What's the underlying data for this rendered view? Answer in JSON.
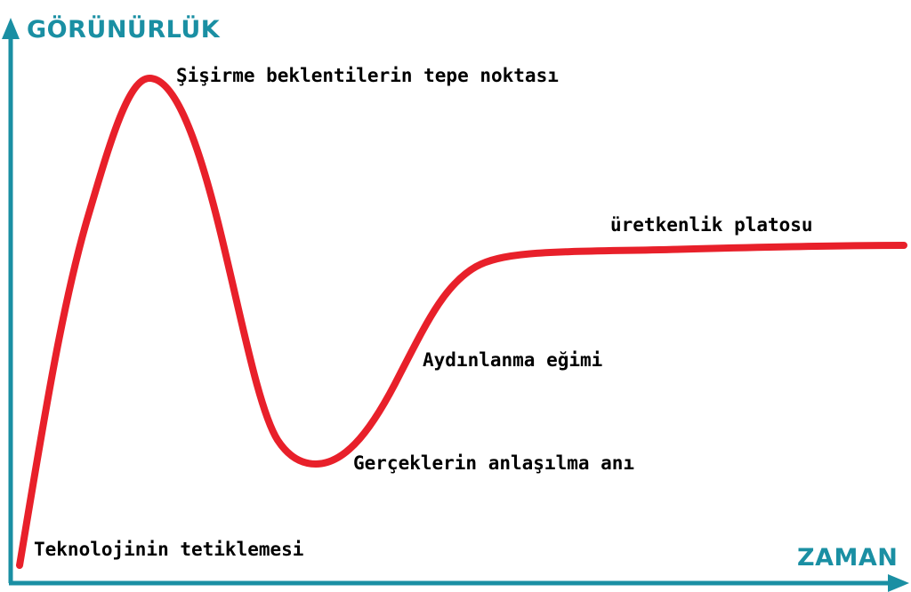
{
  "colors": {
    "axis": "#1a8fa3",
    "curve": "#e8202a",
    "text": "#000000",
    "background": "#ffffff"
  },
  "axes": {
    "y_label": "GÖRÜNÜRLÜK",
    "x_label": "ZAMAN"
  },
  "phases": [
    {
      "id": "trigger",
      "label": "Teknolojinin tetiklemesi"
    },
    {
      "id": "peak",
      "label": "Şişirme beklentilerin tepe noktası"
    },
    {
      "id": "trough",
      "label": "Gerçeklerin anlaşılma anı"
    },
    {
      "id": "slope",
      "label": "Aydınlanma eğimi"
    },
    {
      "id": "plateau",
      "label": "üretkenlik platosu"
    }
  ]
}
